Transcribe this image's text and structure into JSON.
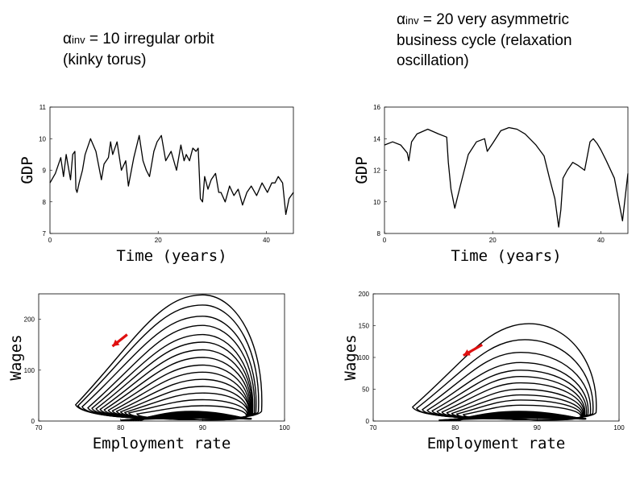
{
  "captions": [
    {
      "greek": "α",
      "sub": "inv",
      "line1_rest": " = 10 irregular orbit",
      "line2": "(kinky torus)"
    },
    {
      "greek": "α",
      "sub": "inv",
      "line1_rest": " = 20 very asymmetric",
      "line2": "business cycle (relaxation",
      "line3": "oscillation)"
    }
  ],
  "colors": {
    "line": "#000000",
    "arrow": "#e01010"
  },
  "chart_data": [
    {
      "type": "line",
      "id": "gdp-left",
      "xlabel": "Time (years)",
      "ylabel": "GDP",
      "xlim": [
        0,
        45
      ],
      "ylim": [
        7,
        11
      ],
      "xticks": [
        "0",
        "20",
        "40"
      ],
      "xtick_values": [
        0,
        20,
        40
      ],
      "yticks": [
        "7",
        "8",
        "9",
        "10",
        "11"
      ],
      "ytick_values": [
        7,
        8,
        9,
        10,
        11
      ],
      "x": [
        0,
        1,
        2,
        2.5,
        3,
        3.5,
        3.8,
        4.2,
        4.6,
        4.8,
        5,
        5.4,
        6,
        6.5,
        7.5,
        8.5,
        9.5,
        10,
        10.8,
        11.2,
        11.6,
        12.4,
        13.2,
        14,
        14.5,
        15.5,
        16.5,
        17.2,
        17.8,
        18.4,
        18.8,
        19.2,
        19.8,
        20.6,
        21.4,
        22.4,
        23.4,
        24.2,
        24.8,
        25.2,
        25.8,
        26.4,
        27,
        27.4,
        27.8,
        28.2,
        28.6,
        29.2,
        29.8,
        30.6,
        31.2,
        31.6,
        32.4,
        33.2,
        34,
        34.8,
        35.6,
        36.4,
        37.2,
        38.2,
        39.2,
        40.2,
        41,
        41.6,
        42.2,
        43,
        43.6,
        44.2,
        45
      ],
      "y": [
        8.6,
        8.9,
        9.4,
        8.8,
        9.5,
        9.0,
        8.7,
        9.5,
        9.6,
        8.4,
        8.3,
        8.6,
        9.0,
        9.5,
        10.0,
        9.6,
        8.7,
        9.2,
        9.4,
        9.9,
        9.5,
        9.9,
        9.0,
        9.3,
        8.5,
        9.4,
        10.1,
        9.3,
        9.0,
        8.8,
        9.2,
        9.6,
        9.9,
        10.1,
        9.3,
        9.6,
        9.0,
        9.8,
        9.3,
        9.5,
        9.3,
        9.7,
        9.6,
        9.7,
        8.1,
        8.0,
        8.8,
        8.4,
        8.7,
        8.9,
        8.3,
        8.3,
        8.0,
        8.5,
        8.2,
        8.4,
        7.9,
        8.3,
        8.5,
        8.2,
        8.6,
        8.3,
        8.6,
        8.6,
        8.8,
        8.6,
        7.6,
        8.1,
        8.3
      ]
    },
    {
      "type": "line",
      "id": "gdp-right",
      "xlabel": "Time (years)",
      "ylabel": "GDP",
      "xlim": [
        0,
        45
      ],
      "ylim": [
        8,
        16
      ],
      "xticks": [
        "0",
        "20",
        "40"
      ],
      "xtick_values": [
        0,
        20,
        40
      ],
      "yticks": [
        "8",
        "10",
        "12",
        "14",
        "16"
      ],
      "ytick_values": [
        8,
        10,
        12,
        14,
        16
      ],
      "x": [
        0,
        1.5,
        3,
        4.2,
        4.5,
        5,
        6,
        8,
        10,
        11.5,
        11.8,
        12.3,
        13,
        14,
        15.5,
        17,
        18.5,
        19,
        20,
        21.5,
        23,
        24.5,
        26,
        28,
        29.5,
        30.5,
        31.5,
        32.2,
        32.6,
        33,
        33.8,
        34.8,
        35.8,
        37,
        38,
        38.6,
        39.3,
        40,
        41,
        42.5,
        44,
        45
      ],
      "y": [
        13.6,
        13.8,
        13.6,
        13.1,
        12.6,
        13.8,
        14.3,
        14.6,
        14.3,
        14.1,
        12.5,
        10.8,
        9.6,
        11.0,
        13.0,
        13.8,
        14.0,
        13.2,
        13.7,
        14.5,
        14.7,
        14.6,
        14.3,
        13.6,
        12.9,
        11.5,
        10.2,
        8.4,
        9.5,
        11.5,
        12.0,
        12.5,
        12.3,
        12.0,
        13.8,
        14.0,
        13.7,
        13.3,
        12.6,
        11.5,
        8.8,
        11.8
      ]
    },
    {
      "type": "line",
      "id": "phase-left",
      "xlabel": "Employment rate",
      "ylabel": "Wages",
      "xlim": [
        70,
        100
      ],
      "ylim": [
        0,
        250
      ],
      "xticks": [
        "70",
        "80",
        "90",
        "100"
      ],
      "xtick_values": [
        70,
        80,
        90,
        100
      ],
      "yticks": [
        "0",
        "100",
        "200"
      ],
      "ytick_values": [
        0,
        100,
        200
      ],
      "loops": [
        {
          "left_x": 74.5,
          "left_y": 32,
          "right_x": 97.2,
          "top_x": 90,
          "top_y": 248
        },
        {
          "left_x": 74.8,
          "left_y": 30,
          "right_x": 96.8,
          "top_x": 90,
          "top_y": 228
        },
        {
          "left_x": 75.3,
          "left_y": 28,
          "right_x": 96.5,
          "top_x": 90,
          "top_y": 206
        },
        {
          "left_x": 76,
          "left_y": 26,
          "right_x": 96.3,
          "top_x": 90,
          "top_y": 188
        },
        {
          "left_x": 76.5,
          "left_y": 25,
          "right_x": 96.1,
          "top_x": 90,
          "top_y": 170
        },
        {
          "left_x": 77,
          "left_y": 24,
          "right_x": 96,
          "top_x": 90,
          "top_y": 155
        },
        {
          "left_x": 77.5,
          "left_y": 23,
          "right_x": 95.9,
          "top_x": 90,
          "top_y": 140
        },
        {
          "left_x": 78,
          "left_y": 22,
          "right_x": 95.8,
          "top_x": 90,
          "top_y": 125
        },
        {
          "left_x": 78.5,
          "left_y": 21,
          "right_x": 95.7,
          "top_x": 90,
          "top_y": 110
        },
        {
          "left_x": 79,
          "left_y": 20,
          "right_x": 95.6,
          "top_x": 90,
          "top_y": 96
        },
        {
          "left_x": 79.5,
          "left_y": 19,
          "right_x": 95.6,
          "top_x": 90,
          "top_y": 82
        },
        {
          "left_x": 80,
          "left_y": 18,
          "right_x": 95.5,
          "top_x": 90,
          "top_y": 68
        },
        {
          "left_x": 80.5,
          "left_y": 17,
          "right_x": 95.5,
          "top_x": 90,
          "top_y": 55
        },
        {
          "left_x": 81,
          "left_y": 16,
          "right_x": 95.4,
          "top_x": 90,
          "top_y": 42
        },
        {
          "left_x": 82,
          "left_y": 14,
          "right_x": 95.3,
          "top_x": 90,
          "top_y": 30
        }
      ],
      "arrow": {
        "from": [
          80.8,
          170
        ],
        "to": [
          79.0,
          147
        ]
      }
    },
    {
      "type": "line",
      "id": "phase-right",
      "xlabel": "Employment rate",
      "ylabel": "Wages",
      "xlim": [
        70,
        100
      ],
      "ylim": [
        0,
        200
      ],
      "xticks": [
        "70",
        "80",
        "90",
        "100"
      ],
      "xtick_values": [
        70,
        80,
        90,
        100
      ],
      "yticks": [
        "0",
        "50",
        "100",
        "150",
        "200"
      ],
      "ytick_values": [
        0,
        50,
        100,
        150,
        200
      ],
      "loops": [
        {
          "left_x": 74.8,
          "left_y": 22,
          "right_x": 97.2,
          "top_x": 89,
          "top_y": 153
        },
        {
          "left_x": 75.3,
          "left_y": 20,
          "right_x": 96.8,
          "top_x": 88.5,
          "top_y": 128
        },
        {
          "left_x": 76,
          "left_y": 18,
          "right_x": 96.5,
          "top_x": 88,
          "top_y": 108
        },
        {
          "left_x": 76.6,
          "left_y": 17,
          "right_x": 96.2,
          "top_x": 88,
          "top_y": 92
        },
        {
          "left_x": 77.2,
          "left_y": 16,
          "right_x": 96,
          "top_x": 88,
          "top_y": 80
        },
        {
          "left_x": 77.8,
          "left_y": 15,
          "right_x": 95.8,
          "top_x": 88,
          "top_y": 70
        },
        {
          "left_x": 78.4,
          "left_y": 14,
          "right_x": 95.7,
          "top_x": 88,
          "top_y": 60
        },
        {
          "left_x": 79,
          "left_y": 13,
          "right_x": 95.6,
          "top_x": 88,
          "top_y": 50
        },
        {
          "left_x": 79.6,
          "left_y": 12,
          "right_x": 95.5,
          "top_x": 88,
          "top_y": 41
        },
        {
          "left_x": 80.2,
          "left_y": 11,
          "right_x": 95.4,
          "top_x": 88,
          "top_y": 33
        },
        {
          "left_x": 81,
          "left_y": 10,
          "right_x": 95.3,
          "top_x": 88,
          "top_y": 25
        }
      ],
      "arrow": {
        "from": [
          83.3,
          120
        ],
        "to": [
          81.0,
          103
        ]
      }
    }
  ]
}
